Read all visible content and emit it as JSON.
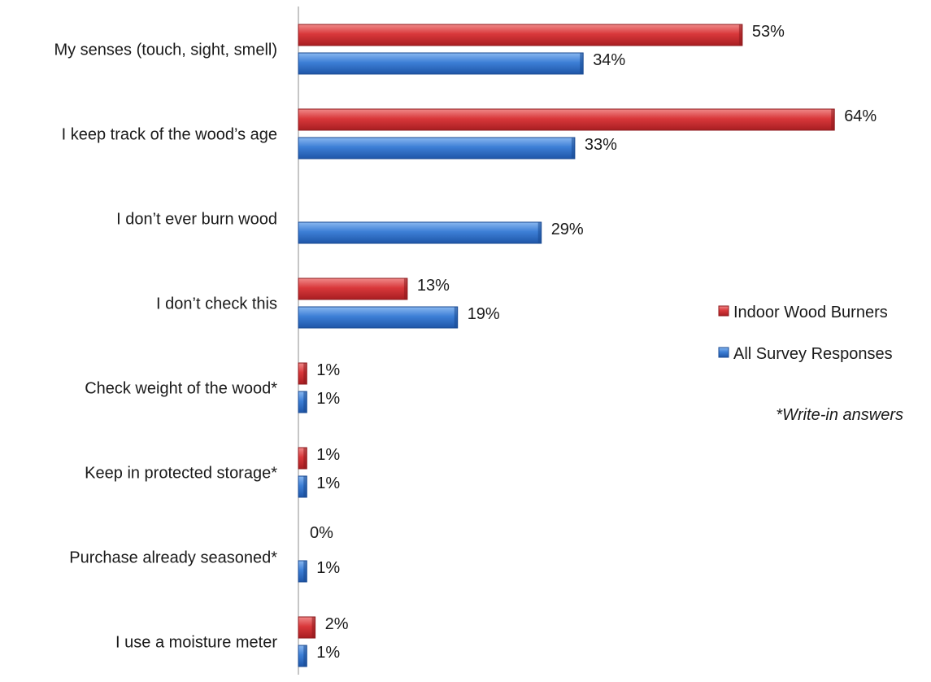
{
  "chart_data": {
    "type": "bar",
    "orientation": "horizontal",
    "categories": [
      "My senses (touch, sight, smell)",
      "I keep track of the wood’s age",
      "I don’t ever burn wood",
      "I don’t check this",
      "Check weight of the wood*",
      "Keep in protected storage*",
      "Purchase already seasoned*",
      "I use a moisture meter"
    ],
    "series": [
      {
        "name": "Indoor Wood Burners",
        "color": "#d9383b",
        "values": [
          53,
          64,
          null,
          13,
          1,
          1,
          0,
          2
        ],
        "labels": [
          "53%",
          "64%",
          "",
          "13%",
          "1%",
          "1%",
          "0%",
          "2%"
        ]
      },
      {
        "name": "All Survey Responses",
        "color": "#3d7fd6",
        "values": [
          34,
          33,
          29,
          19,
          1,
          1,
          1,
          1
        ],
        "labels": [
          "34%",
          "33%",
          "29%",
          "19%",
          "1%",
          "1%",
          "1%",
          "1%"
        ]
      }
    ],
    "unit": "%",
    "xlim": [
      0,
      64
    ],
    "grid": false,
    "legend": "right",
    "note": "*Write-in answers"
  }
}
